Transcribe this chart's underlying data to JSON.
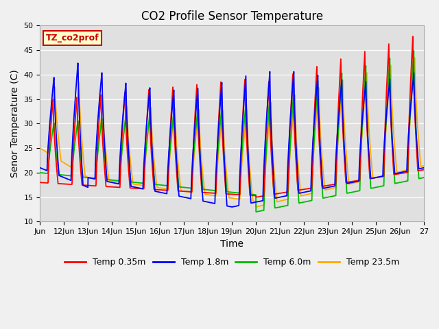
{
  "title": "CO2 Profile Sensor Temperature",
  "xlabel": "Time",
  "ylabel": "Senor Temperature (C)",
  "ylim": [
    10,
    50
  ],
  "xlim_days": [
    11,
    27
  ],
  "xtick_labels": [
    "Jun",
    "12Jun",
    "13Jun",
    "14Jun",
    "15Jun",
    "16Jun",
    "17Jun",
    "18Jun",
    "19Jun",
    "20Jun",
    "21Jun",
    "22Jun",
    "23Jun",
    "24Jun",
    "25Jun",
    "26Jun",
    "27"
  ],
  "xtick_positions": [
    11,
    12,
    13,
    14,
    15,
    16,
    17,
    18,
    19,
    20,
    21,
    22,
    23,
    24,
    25,
    26,
    27
  ],
  "legend_label": "TZ_co2prof",
  "legend_box_facecolor": "#ffffcc",
  "legend_box_edgecolor": "#cc0000",
  "series": [
    {
      "label": "Temp 0.35m",
      "color": "#ff0000"
    },
    {
      "label": "Temp 1.8m",
      "color": "#0000ff"
    },
    {
      "label": "Temp 6.0m",
      "color": "#00bb00"
    },
    {
      "label": "Temp 23.5m",
      "color": "#ffaa00"
    }
  ],
  "plot_bg_color": "#e0e0e0",
  "fig_bg_color": "#f0f0f0",
  "grid_color": "#ffffff",
  "yticks": [
    10,
    15,
    20,
    25,
    30,
    35,
    40,
    45,
    50
  ],
  "title_fontsize": 12,
  "axis_label_fontsize": 10,
  "tick_fontsize": 8,
  "legend_fontsize": 9
}
